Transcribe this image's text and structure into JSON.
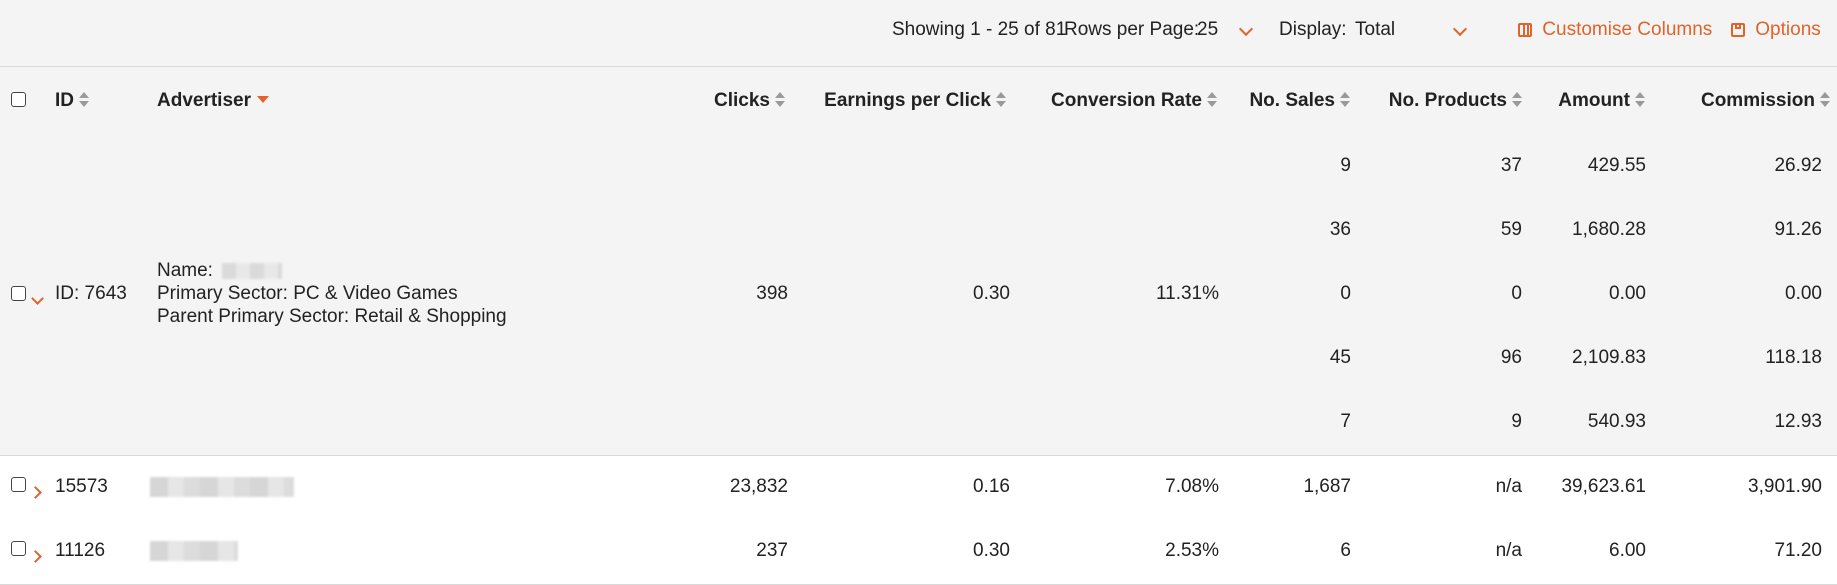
{
  "toolbar": {
    "showing": "Showing 1 - 25 of 81",
    "rows_per_page_label": "Rows per Page:",
    "rows_per_page_value": "25",
    "display_label": "Display:",
    "display_value": "Total",
    "customise_columns": "Customise Columns",
    "options": "Options"
  },
  "columns": {
    "id": "ID",
    "advertiser": "Advertiser",
    "clicks": "Clicks",
    "epc": "Earnings per Click",
    "conversion_rate": "Conversion Rate",
    "sales": "No. Sales",
    "products": "No. Products",
    "amount": "Amount",
    "commission": "Commission"
  },
  "expanded_row": {
    "id": "ID: 7643",
    "name_label": "Name:",
    "primary_sector": "Primary Sector: PC & Video Games",
    "parent_sector": "Parent Primary Sector: Retail & Shopping",
    "clicks": "398",
    "epc": "0.30",
    "conversion_rate": "11.31%",
    "sub_rows": [
      {
        "sales": "9",
        "products": "37",
        "amount": "429.55",
        "commission": "26.92"
      },
      {
        "sales": "36",
        "products": "59",
        "amount": "1,680.28",
        "commission": "91.26"
      },
      {
        "sales": "0",
        "products": "0",
        "amount": "0.00",
        "commission": "0.00"
      },
      {
        "sales": "45",
        "products": "96",
        "amount": "2,109.83",
        "commission": "118.18"
      },
      {
        "sales": "7",
        "products": "9",
        "amount": "540.93",
        "commission": "12.93"
      }
    ]
  },
  "rows": [
    {
      "id": "15573",
      "clicks": "23,832",
      "epc": "0.16",
      "conversion_rate": "7.08%",
      "sales": "1,687",
      "products": "n/a",
      "amount": "39,623.61",
      "commission": "3,901.90"
    },
    {
      "id": "11126",
      "clicks": "237",
      "epc": "0.30",
      "conversion_rate": "2.53%",
      "sales": "6",
      "products": "n/a",
      "amount": "6.00",
      "commission": "71.20"
    }
  ],
  "colors": {
    "accent": "#e0642a",
    "header_bg": "#f4f4f5"
  }
}
